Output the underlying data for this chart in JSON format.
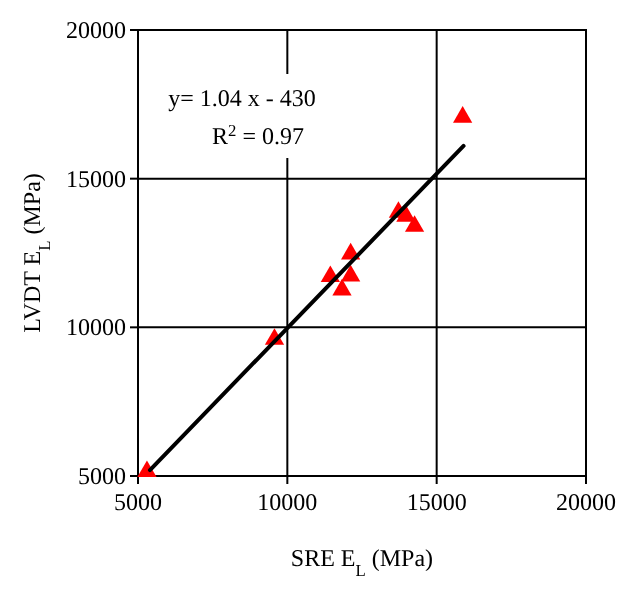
{
  "chart_data": {
    "type": "scatter",
    "xlabel": "SRE E$_{L}$ (MPa)",
    "ylabel": "LVDT E$_{L}$ (MPa)",
    "xlim": [
      5000,
      20000
    ],
    "ylim": [
      5000,
      20000
    ],
    "xticks": [
      5000,
      10000,
      15000,
      20000
    ],
    "yticks": [
      5000,
      10000,
      15000,
      20000
    ],
    "grid": true,
    "series": [
      {
        "marker": "triangle",
        "color": "#ff0000",
        "x": [
          5300,
          9570,
          11440,
          11830,
          12120,
          12120,
          13720,
          13970,
          14260,
          15870
        ],
        "values": [
          5150,
          9600,
          11710,
          11260,
          12470,
          11730,
          13870,
          13740,
          13400,
          17070
        ]
      },
      {
        "type": "line",
        "marker": "none",
        "color": "#000000",
        "x": [
          5400,
          15900
        ],
        "values": [
          5200,
          16100
        ]
      }
    ],
    "annotations": [
      "y= 1.04 x - 430",
      "R$^{2}$ = 0.97"
    ]
  }
}
